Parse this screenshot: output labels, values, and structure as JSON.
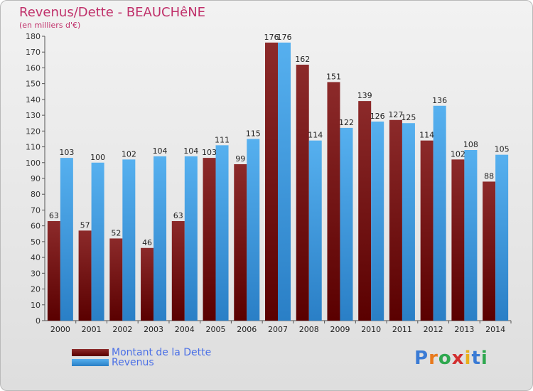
{
  "chart_data": {
    "type": "bar",
    "title": "Revenus/Dette - BEAUCHêNE",
    "subtitle": "(en milliers d'€)",
    "categories": [
      "2000",
      "2001",
      "2002",
      "2003",
      "2004",
      "2005",
      "2006",
      "2007",
      "2008",
      "2009",
      "2010",
      "2011",
      "2012",
      "2013",
      "2014"
    ],
    "series": [
      {
        "name": "Montant de la Dette",
        "color": "#7a1212",
        "values": [
          63,
          57,
          52,
          46,
          63,
          103,
          99,
          176,
          162,
          151,
          139,
          127,
          114,
          102,
          88
        ]
      },
      {
        "name": "Revenus",
        "color": "#3b9be0",
        "values": [
          103,
          100,
          102,
          104,
          104,
          111,
          115,
          176,
          114,
          122,
          126,
          125,
          136,
          108,
          105
        ]
      }
    ],
    "ylim": [
      0,
      180
    ],
    "ytick_step": 10,
    "grid": false,
    "legend_position": "bottom-left"
  },
  "logo": {
    "text": "Proxiti",
    "letters": [
      "P",
      "r",
      "o",
      "x",
      "i",
      "t",
      "i"
    ]
  }
}
